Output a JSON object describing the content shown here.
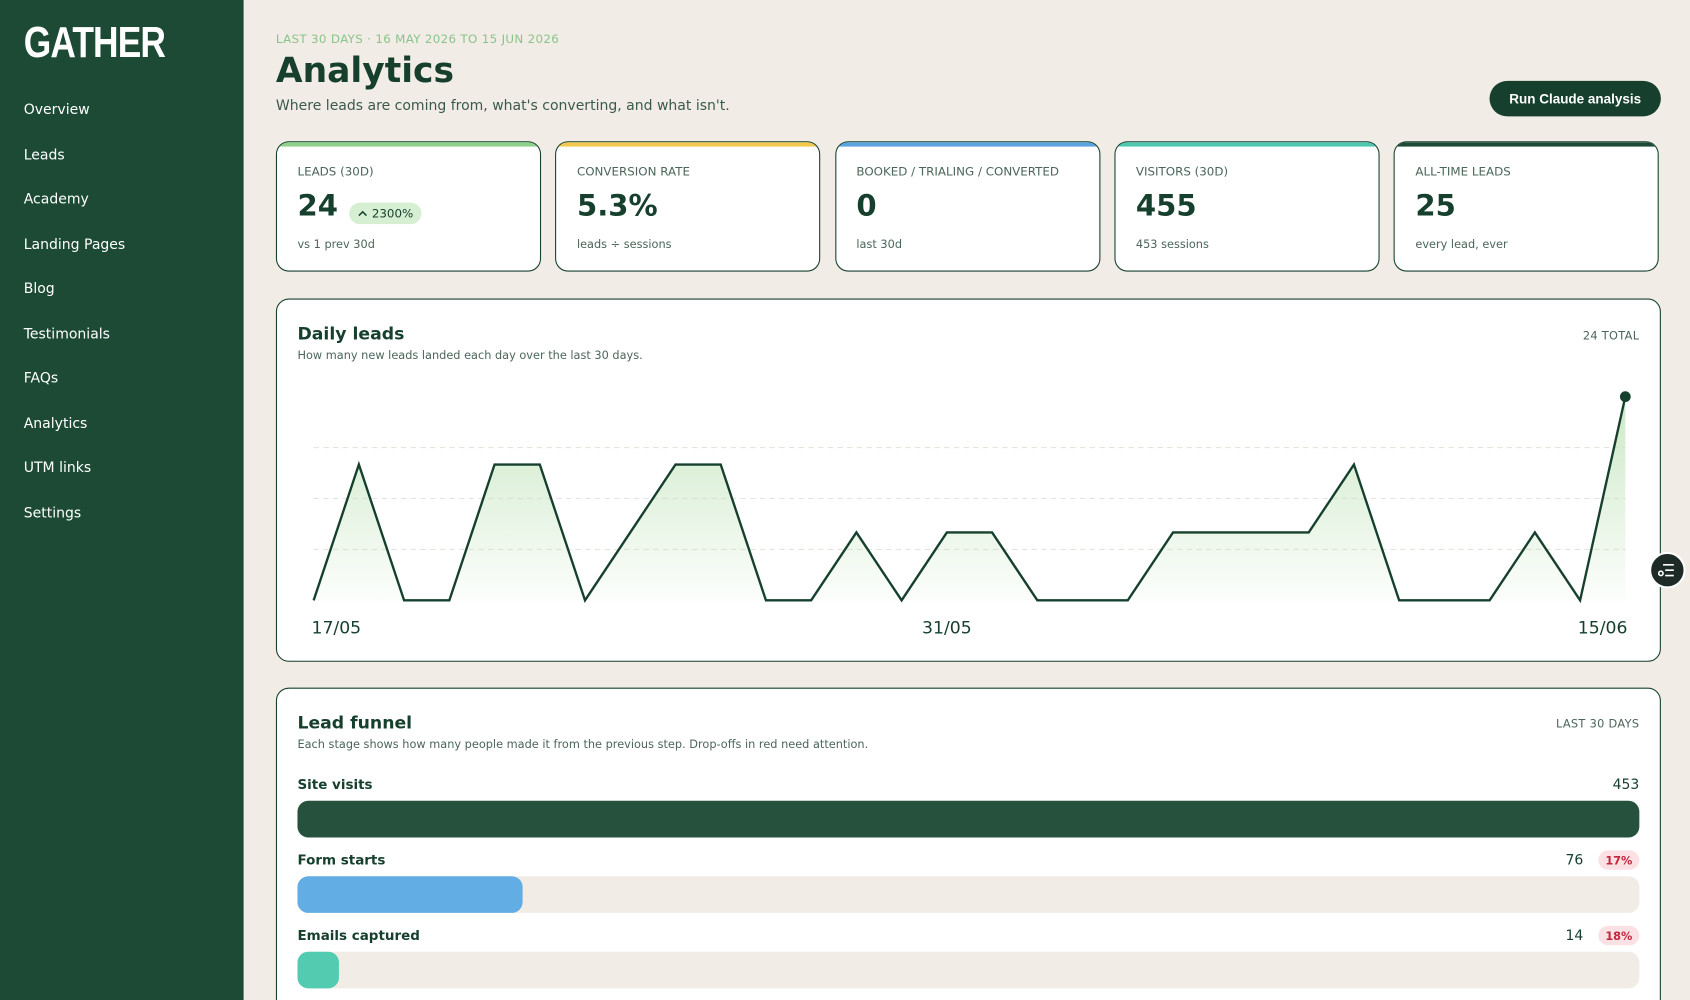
{
  "brand": "GATHER",
  "nav": [
    "Overview",
    "Leads",
    "Academy",
    "Landing Pages",
    "Blog",
    "Testimonials",
    "FAQs",
    "Analytics",
    "UTM links",
    "Settings"
  ],
  "header": {
    "eyebrow": "LAST 30 DAYS · 16 MAY 2026 TO 15 JUN 2026",
    "title": "Analytics",
    "subtitle": "Where leads are coming from, what's converting, and what isn't.",
    "button": "Run Claude analysis"
  },
  "kpis": [
    {
      "label": "LEADS (30D)",
      "value": "24",
      "badge": "2300%",
      "sub": "vs 1 prev 30d",
      "color": "#8fd18a"
    },
    {
      "label": "CONVERSION RATE",
      "value": "5.3%",
      "sub": "leads ÷ sessions",
      "color": "#f2c94c"
    },
    {
      "label": "BOOKED / TRIALING / CONVERTED",
      "value": "0",
      "sub": "last 30d",
      "color": "#5ba3e0"
    },
    {
      "label": "VISITORS (30D)",
      "value": "455",
      "sub": "453 sessions",
      "color": "#4fc7b0"
    },
    {
      "label": "ALL-TIME LEADS",
      "value": "25",
      "sub": "every lead, ever",
      "color": "#1c4a35"
    }
  ],
  "chart_data": [
    {
      "type": "line",
      "title": "Daily leads",
      "subtitle": "How many new leads landed each day over the last 30 days.",
      "annotation": "24 TOTAL",
      "categories": [
        "17/05",
        null,
        null,
        null,
        null,
        null,
        null,
        null,
        null,
        null,
        null,
        null,
        null,
        null,
        "31/05",
        null,
        null,
        null,
        null,
        null,
        null,
        null,
        null,
        null,
        null,
        null,
        null,
        null,
        null,
        "15/06"
      ],
      "values": [
        0,
        2,
        0,
        0,
        2,
        2,
        0,
        1,
        2,
        2,
        0,
        0,
        1,
        0,
        1,
        1,
        0,
        0,
        0,
        1,
        1,
        1,
        1,
        2,
        0,
        0,
        0,
        1,
        0,
        3
      ],
      "color": "#16402d",
      "ylim": [
        0,
        3
      ],
      "grid_values": [
        0.75,
        1.5,
        2.25
      ]
    },
    {
      "type": "funnel",
      "title": "Lead funnel",
      "subtitle": "Each stage shows how many people made it from the previous step. Drop-offs in red need attention.",
      "annotation": "LAST 30 DAYS",
      "categories": [
        "Site visits",
        "Form starts",
        "Emails captured"
      ],
      "values": [
        453,
        76,
        14
      ],
      "rate_labels": [
        null,
        "17%",
        "18%"
      ],
      "colors": [
        "#26513d",
        "#62ade3",
        "#52cbb0"
      ],
      "xlim": [
        0,
        453
      ]
    }
  ]
}
